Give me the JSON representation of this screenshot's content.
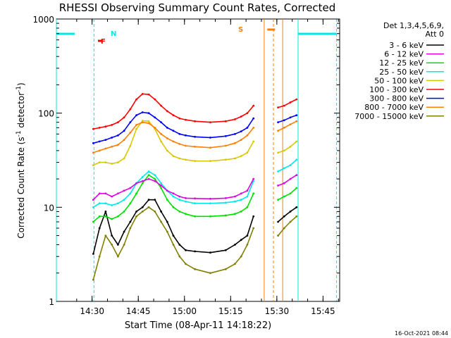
{
  "chart_data": {
    "type": "line",
    "title": "RHESSI Observing Summary Count Rates, Corrected",
    "xlabel": "Start Time (08-Apr-11 14:18:22)",
    "ylabel_parts": [
      "Corrected Count Rate (s",
      "-1",
      " detector",
      "-1",
      ")"
    ],
    "y_scale": "log",
    "ylim": [
      1,
      1000
    ],
    "xlim_minutes_after_14_18_22": [
      0,
      92
    ],
    "x_ticks": [
      {
        "label": "14:30",
        "minutes": 11.6
      },
      {
        "label": "14:45",
        "minutes": 26.6
      },
      {
        "label": "15:00",
        "minutes": 41.6
      },
      {
        "label": "15:15",
        "minutes": 56.6
      },
      {
        "label": "15:30",
        "minutes": 71.6
      },
      {
        "label": "15:45",
        "minutes": 86.6
      }
    ],
    "y_ticks": [
      {
        "label": "1",
        "value": 1
      },
      {
        "label": "10",
        "value": 10
      },
      {
        "label": "100",
        "value": 100
      },
      {
        "label": "1000",
        "value": 1000
      }
    ],
    "legend_header": [
      "Det 1,3,4,5,6,9,",
      "Att 0"
    ],
    "legend_position": "right, outside plot",
    "series": [
      {
        "name": "3 - 6 keV",
        "color": "#000000",
        "points": [
          [
            12,
            3.2
          ],
          [
            14,
            6
          ],
          [
            16,
            9
          ],
          [
            18,
            5
          ],
          [
            20,
            4
          ],
          [
            22,
            5.5
          ],
          [
            24,
            7
          ],
          [
            26,
            9
          ],
          [
            28,
            10
          ],
          [
            30,
            12
          ],
          [
            32,
            12
          ],
          [
            34,
            9
          ],
          [
            36,
            7
          ],
          [
            38,
            5
          ],
          [
            40,
            4
          ],
          [
            42,
            3.5
          ],
          [
            45,
            3.4
          ],
          [
            50,
            3.3
          ],
          [
            55,
            3.5
          ],
          [
            58,
            4
          ],
          [
            60,
            4.5
          ],
          [
            62,
            5
          ],
          [
            64,
            8
          ],
          [
            72,
            7
          ],
          [
            74,
            8
          ],
          [
            76,
            9
          ],
          [
            78,
            10
          ]
        ]
      },
      {
        "name": "6 - 12 keV",
        "color": "#e000e0",
        "points": [
          [
            12,
            12
          ],
          [
            14,
            14
          ],
          [
            16,
            14
          ],
          [
            18,
            13
          ],
          [
            20,
            14
          ],
          [
            22,
            15
          ],
          [
            24,
            16
          ],
          [
            26,
            18
          ],
          [
            28,
            19
          ],
          [
            30,
            20
          ],
          [
            32,
            19
          ],
          [
            34,
            17
          ],
          [
            36,
            15
          ],
          [
            38,
            14
          ],
          [
            40,
            13
          ],
          [
            42,
            12.5
          ],
          [
            45,
            12.4
          ],
          [
            50,
            12.3
          ],
          [
            55,
            12.5
          ],
          [
            58,
            13
          ],
          [
            60,
            14
          ],
          [
            62,
            15
          ],
          [
            64,
            20
          ],
          [
            72,
            17
          ],
          [
            74,
            18
          ],
          [
            76,
            20
          ],
          [
            78,
            22
          ]
        ]
      },
      {
        "name": "12 - 25 keV",
        "color": "#00e000",
        "points": [
          [
            12,
            7
          ],
          [
            14,
            8
          ],
          [
            16,
            8
          ],
          [
            18,
            7.5
          ],
          [
            20,
            8
          ],
          [
            22,
            9
          ],
          [
            24,
            11
          ],
          [
            26,
            14
          ],
          [
            28,
            18
          ],
          [
            30,
            22
          ],
          [
            32,
            20
          ],
          [
            34,
            16
          ],
          [
            36,
            12
          ],
          [
            38,
            10
          ],
          [
            40,
            9
          ],
          [
            42,
            8.5
          ],
          [
            45,
            8
          ],
          [
            50,
            8
          ],
          [
            55,
            8.2
          ],
          [
            58,
            8.5
          ],
          [
            60,
            9
          ],
          [
            62,
            10
          ],
          [
            64,
            14
          ],
          [
            72,
            12
          ],
          [
            74,
            13
          ],
          [
            76,
            14
          ],
          [
            78,
            16
          ]
        ]
      },
      {
        "name": "25 - 50 keV",
        "color": "#00e8e8",
        "points": [
          [
            12,
            10
          ],
          [
            14,
            11
          ],
          [
            16,
            11
          ],
          [
            18,
            10.5
          ],
          [
            20,
            11
          ],
          [
            22,
            12
          ],
          [
            24,
            14
          ],
          [
            26,
            18
          ],
          [
            28,
            21
          ],
          [
            30,
            24
          ],
          [
            32,
            22
          ],
          [
            34,
            18
          ],
          [
            36,
            15
          ],
          [
            38,
            13
          ],
          [
            40,
            12
          ],
          [
            42,
            11.5
          ],
          [
            45,
            11
          ],
          [
            50,
            11
          ],
          [
            55,
            11.2
          ],
          [
            58,
            11.5
          ],
          [
            60,
            12
          ],
          [
            62,
            13
          ],
          [
            64,
            19
          ],
          [
            72,
            24
          ],
          [
            74,
            26
          ],
          [
            76,
            28
          ],
          [
            78,
            32
          ]
        ]
      },
      {
        "name": "50 - 100 keV",
        "color": "#d8c800",
        "points": [
          [
            12,
            28
          ],
          [
            14,
            30
          ],
          [
            16,
            30
          ],
          [
            18,
            29
          ],
          [
            20,
            30
          ],
          [
            22,
            33
          ],
          [
            24,
            45
          ],
          [
            26,
            68
          ],
          [
            28,
            83
          ],
          [
            30,
            82
          ],
          [
            32,
            68
          ],
          [
            34,
            50
          ],
          [
            36,
            40
          ],
          [
            38,
            35
          ],
          [
            40,
            33
          ],
          [
            42,
            32
          ],
          [
            45,
            31
          ],
          [
            50,
            31
          ],
          [
            55,
            32
          ],
          [
            58,
            33
          ],
          [
            60,
            35
          ],
          [
            62,
            38
          ],
          [
            64,
            50
          ],
          [
            72,
            38
          ],
          [
            74,
            40
          ],
          [
            76,
            44
          ],
          [
            78,
            50
          ]
        ]
      },
      {
        "name": "100 - 300 keV",
        "color": "#ff0000",
        "points": [
          [
            12,
            68
          ],
          [
            14,
            70
          ],
          [
            16,
            72
          ],
          [
            18,
            75
          ],
          [
            20,
            80
          ],
          [
            22,
            90
          ],
          [
            24,
            110
          ],
          [
            26,
            140
          ],
          [
            28,
            160
          ],
          [
            30,
            158
          ],
          [
            32,
            140
          ],
          [
            34,
            120
          ],
          [
            36,
            105
          ],
          [
            38,
            95
          ],
          [
            40,
            88
          ],
          [
            42,
            85
          ],
          [
            45,
            82
          ],
          [
            50,
            80
          ],
          [
            55,
            82
          ],
          [
            58,
            86
          ],
          [
            60,
            92
          ],
          [
            62,
            100
          ],
          [
            64,
            120
          ],
          [
            72,
            115
          ],
          [
            74,
            120
          ],
          [
            76,
            130
          ],
          [
            78,
            140
          ]
        ]
      },
      {
        "name": "300 - 800 keV",
        "color": "#0000ff",
        "points": [
          [
            12,
            48
          ],
          [
            14,
            50
          ],
          [
            16,
            52
          ],
          [
            18,
            55
          ],
          [
            20,
            58
          ],
          [
            22,
            65
          ],
          [
            24,
            80
          ],
          [
            26,
            95
          ],
          [
            28,
            102
          ],
          [
            30,
            100
          ],
          [
            32,
            90
          ],
          [
            34,
            80
          ],
          [
            36,
            70
          ],
          [
            38,
            65
          ],
          [
            40,
            60
          ],
          [
            42,
            58
          ],
          [
            45,
            56
          ],
          [
            50,
            55
          ],
          [
            55,
            57
          ],
          [
            58,
            60
          ],
          [
            60,
            64
          ],
          [
            62,
            70
          ],
          [
            64,
            88
          ],
          [
            72,
            80
          ],
          [
            74,
            84
          ],
          [
            76,
            90
          ],
          [
            78,
            95
          ]
        ]
      },
      {
        "name": "800 - 7000 keV",
        "color": "#ff8000",
        "points": [
          [
            12,
            38
          ],
          [
            14,
            40
          ],
          [
            16,
            42
          ],
          [
            18,
            44
          ],
          [
            20,
            46
          ],
          [
            22,
            52
          ],
          [
            24,
            62
          ],
          [
            26,
            75
          ],
          [
            28,
            80
          ],
          [
            30,
            78
          ],
          [
            32,
            70
          ],
          [
            34,
            60
          ],
          [
            36,
            54
          ],
          [
            38,
            50
          ],
          [
            40,
            47
          ],
          [
            42,
            45
          ],
          [
            45,
            44
          ],
          [
            50,
            43
          ],
          [
            55,
            45
          ],
          [
            58,
            48
          ],
          [
            60,
            52
          ],
          [
            62,
            58
          ],
          [
            64,
            70
          ],
          [
            72,
            65
          ],
          [
            74,
            70
          ],
          [
            76,
            76
          ],
          [
            78,
            82
          ]
        ]
      },
      {
        "name": "7000 - 15000 keV",
        "color": "#808000",
        "points": [
          [
            12,
            1.7
          ],
          [
            14,
            3
          ],
          [
            16,
            5
          ],
          [
            18,
            4
          ],
          [
            20,
            3
          ],
          [
            22,
            4
          ],
          [
            24,
            6
          ],
          [
            26,
            8
          ],
          [
            28,
            9
          ],
          [
            30,
            10
          ],
          [
            32,
            9
          ],
          [
            34,
            7
          ],
          [
            36,
            5.5
          ],
          [
            38,
            4
          ],
          [
            40,
            3
          ],
          [
            42,
            2.5
          ],
          [
            45,
            2.2
          ],
          [
            50,
            2
          ],
          [
            55,
            2.2
          ],
          [
            58,
            2.5
          ],
          [
            60,
            3
          ],
          [
            62,
            4
          ],
          [
            64,
            6
          ],
          [
            72,
            5
          ],
          [
            74,
            6
          ],
          [
            76,
            7
          ],
          [
            78,
            8
          ]
        ]
      }
    ],
    "annotations": [
      {
        "text": "F",
        "color": "#ff0000"
      },
      {
        "text": "N",
        "color": "#00e8e8"
      },
      {
        "text": "S",
        "color": "#ff8000"
      }
    ],
    "footer_timestamp": "16-Oct-2021 08:44"
  }
}
